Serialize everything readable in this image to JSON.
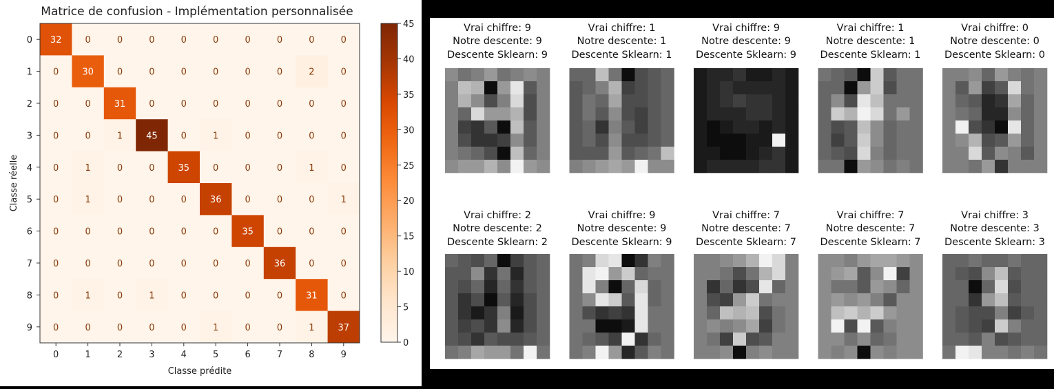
{
  "chart_data": [
    {
      "type": "heatmap",
      "title": "Matrice de confusion - Implémentation personnalisée",
      "xlabel": "Classe prédite",
      "ylabel": "Classe réelle",
      "x_categories": [
        "0",
        "1",
        "2",
        "3",
        "4",
        "5",
        "6",
        "7",
        "8",
        "9"
      ],
      "y_categories": [
        "0",
        "1",
        "2",
        "3",
        "4",
        "5",
        "6",
        "7",
        "8",
        "9"
      ],
      "matrix": [
        [
          32,
          0,
          0,
          0,
          0,
          0,
          0,
          0,
          0,
          0
        ],
        [
          0,
          30,
          0,
          0,
          0,
          0,
          0,
          0,
          2,
          0
        ],
        [
          0,
          0,
          31,
          0,
          0,
          0,
          0,
          0,
          0,
          0
        ],
        [
          0,
          0,
          1,
          45,
          0,
          1,
          0,
          0,
          0,
          0
        ],
        [
          0,
          1,
          0,
          0,
          35,
          0,
          0,
          0,
          1,
          0
        ],
        [
          0,
          1,
          0,
          0,
          0,
          36,
          0,
          0,
          0,
          1
        ],
        [
          0,
          0,
          0,
          0,
          0,
          0,
          35,
          0,
          0,
          0
        ],
        [
          0,
          0,
          0,
          0,
          0,
          0,
          0,
          36,
          0,
          0
        ],
        [
          0,
          1,
          0,
          1,
          0,
          0,
          0,
          0,
          31,
          0
        ],
        [
          0,
          0,
          0,
          0,
          0,
          1,
          0,
          0,
          1,
          37
        ]
      ],
      "colorbar": {
        "range": [
          0,
          45
        ],
        "ticks": [
          0,
          5,
          10,
          15,
          20,
          25,
          30,
          35,
          40,
          45
        ],
        "colormap": "Oranges"
      }
    },
    {
      "type": "heatmap",
      "subtype": "image-grid",
      "samples": [
        {
          "line1": "Vrai chiffre: 9",
          "line2": "Notre descente: 9",
          "line3": "Descente Sklearn: 9",
          "pixels": [
            [
              0.55,
              0.45,
              0.5,
              0.6,
              0.45,
              0.5,
              0.55,
              0.5
            ],
            [
              0.5,
              0.75,
              0.7,
              0.05,
              0.6,
              0.9,
              0.35,
              0.5
            ],
            [
              0.5,
              0.7,
              0.55,
              0.3,
              0.5,
              0.85,
              0.3,
              0.5
            ],
            [
              0.5,
              0.4,
              0.85,
              0.6,
              0.6,
              0.7,
              0.3,
              0.5
            ],
            [
              0.5,
              0.25,
              0.2,
              0.35,
              0.05,
              0.75,
              0.35,
              0.5
            ],
            [
              0.5,
              0.3,
              0.2,
              0.2,
              0.25,
              0.55,
              0.35,
              0.5
            ],
            [
              0.5,
              0.45,
              0.4,
              0.3,
              0.05,
              0.75,
              0.4,
              0.5
            ],
            [
              0.55,
              0.6,
              0.6,
              0.7,
              0.55,
              0.95,
              0.6,
              0.55
            ]
          ]
        },
        {
          "line1": "Vrai chiffre: 1",
          "line2": "Notre descente: 1",
          "line3": "Descente Sklearn: 1",
          "pixels": [
            [
              0.4,
              0.4,
              0.75,
              0.45,
              0.05,
              0.3,
              0.35,
              0.4
            ],
            [
              0.35,
              0.4,
              0.5,
              0.7,
              0.25,
              0.3,
              0.35,
              0.4
            ],
            [
              0.35,
              0.45,
              0.4,
              0.65,
              0.3,
              0.3,
              0.35,
              0.4
            ],
            [
              0.35,
              0.45,
              0.35,
              0.55,
              0.3,
              0.25,
              0.35,
              0.4
            ],
            [
              0.35,
              0.4,
              0.2,
              0.5,
              0.35,
              0.25,
              0.35,
              0.4
            ],
            [
              0.35,
              0.4,
              0.3,
              0.55,
              0.3,
              0.3,
              0.35,
              0.4
            ],
            [
              0.35,
              0.35,
              0.35,
              0.6,
              0.35,
              0.4,
              0.45,
              0.75
            ],
            [
              0.5,
              0.55,
              0.6,
              0.65,
              0.6,
              0.95,
              0.55,
              0.55
            ]
          ]
        },
        {
          "line1": "Vrai chiffre: 9",
          "line2": "Notre descente: 9",
          "line3": "Descente Sklearn: 9",
          "pixels": [
            [
              0.1,
              0.15,
              0.15,
              0.2,
              0.1,
              0.1,
              0.15,
              0.1
            ],
            [
              0.1,
              0.15,
              0.2,
              0.15,
              0.15,
              0.15,
              0.15,
              0.1
            ],
            [
              0.1,
              0.15,
              0.2,
              0.25,
              0.2,
              0.2,
              0.15,
              0.1
            ],
            [
              0.1,
              0.15,
              0.15,
              0.15,
              0.2,
              0.2,
              0.15,
              0.1
            ],
            [
              0.1,
              0.05,
              0.1,
              0.15,
              0.15,
              0.1,
              0.15,
              0.1
            ],
            [
              0.1,
              0.05,
              0.05,
              0.05,
              0.1,
              0.1,
              0.95,
              0.1
            ],
            [
              0.1,
              0.1,
              0.05,
              0.05,
              0.1,
              0.15,
              0.2,
              0.1
            ],
            [
              0.1,
              0.15,
              0.15,
              0.15,
              0.15,
              0.2,
              0.2,
              0.1
            ]
          ]
        },
        {
          "line1": "Vrai chiffre: 1",
          "line2": "Notre descente: 1",
          "line3": "Descente Sklearn: 1",
          "pixels": [
            [
              0.45,
              0.4,
              0.35,
              0.05,
              0.8,
              0.35,
              0.45,
              0.45
            ],
            [
              0.4,
              0.4,
              0.05,
              0.6,
              0.8,
              0.3,
              0.45,
              0.45
            ],
            [
              0.4,
              0.55,
              0.3,
              0.9,
              0.75,
              0.45,
              0.45,
              0.45
            ],
            [
              0.4,
              0.8,
              0.7,
              0.95,
              0.85,
              0.45,
              0.6,
              0.45
            ],
            [
              0.4,
              0.3,
              0.35,
              0.75,
              0.55,
              0.4,
              0.45,
              0.45
            ],
            [
              0.4,
              0.25,
              0.35,
              0.8,
              0.55,
              0.4,
              0.45,
              0.45
            ],
            [
              0.4,
              0.35,
              0.3,
              0.85,
              0.5,
              0.4,
              0.45,
              0.45
            ],
            [
              0.45,
              0.45,
              0.05,
              0.6,
              0.55,
              0.45,
              0.5,
              0.45
            ]
          ]
        },
        {
          "line1": "Vrai chiffre: 0",
          "line2": "Notre descente: 0",
          "line3": "Descente Sklearn: 0",
          "pixels": [
            [
              0.5,
              0.5,
              0.55,
              0.4,
              0.6,
              0.5,
              0.45,
              0.5
            ],
            [
              0.5,
              0.35,
              0.6,
              0.25,
              0.35,
              0.85,
              0.45,
              0.5
            ],
            [
              0.5,
              0.4,
              0.35,
              0.15,
              0.2,
              0.65,
              0.4,
              0.5
            ],
            [
              0.5,
              0.45,
              0.4,
              0.15,
              0.15,
              0.55,
              0.4,
              0.5
            ],
            [
              0.5,
              0.95,
              0.3,
              0.2,
              0.05,
              0.9,
              0.4,
              0.5
            ],
            [
              0.5,
              0.55,
              0.7,
              0.3,
              0.35,
              0.6,
              0.4,
              0.5
            ],
            [
              0.5,
              0.5,
              0.85,
              0.35,
              0.55,
              0.5,
              0.35,
              0.5
            ],
            [
              0.5,
              0.5,
              0.45,
              0.6,
              0.2,
              0.5,
              0.5,
              0.5
            ]
          ]
        },
        {
          "line1": "Vrai chiffre: 2",
          "line2": "Notre descente: 2",
          "line3": "Descente Sklearn: 2",
          "pixels": [
            [
              0.4,
              0.35,
              0.3,
              0.4,
              0.05,
              0.25,
              0.35,
              0.4
            ],
            [
              0.35,
              0.35,
              0.55,
              0.2,
              0.45,
              0.15,
              0.35,
              0.4
            ],
            [
              0.35,
              0.3,
              0.4,
              0.15,
              0.4,
              0.2,
              0.35,
              0.4
            ],
            [
              0.35,
              0.2,
              0.3,
              0.05,
              0.35,
              0.15,
              0.3,
              0.4
            ],
            [
              0.35,
              0.2,
              0.1,
              0.2,
              0.5,
              0.1,
              0.3,
              0.4
            ],
            [
              0.35,
              0.25,
              0.3,
              0.2,
              0.55,
              0.15,
              0.3,
              0.4
            ],
            [
              0.35,
              0.3,
              0.2,
              0.35,
              0.3,
              0.3,
              0.35,
              0.4
            ],
            [
              0.45,
              0.5,
              0.65,
              0.6,
              0.6,
              0.45,
              0.95,
              0.45
            ]
          ]
        },
        {
          "line1": "Vrai chiffre: 9",
          "line2": "Notre descente: 9",
          "line3": "Descente Sklearn: 9",
          "pixels": [
            [
              0.45,
              0.5,
              0.85,
              0.9,
              0.05,
              0.2,
              0.5,
              0.45
            ],
            [
              0.45,
              0.9,
              0.95,
              0.6,
              0.8,
              0.4,
              0.45,
              0.45
            ],
            [
              0.45,
              0.9,
              0.5,
              0.05,
              0.4,
              0.85,
              0.4,
              0.45
            ],
            [
              0.45,
              0.55,
              0.9,
              0.8,
              0.35,
              0.9,
              0.4,
              0.45
            ],
            [
              0.45,
              0.3,
              0.2,
              0.25,
              0.2,
              0.9,
              0.45,
              0.45
            ],
            [
              0.45,
              0.45,
              0.05,
              0.05,
              0.1,
              0.9,
              0.45,
              0.45
            ],
            [
              0.45,
              0.4,
              0.35,
              0.25,
              0.95,
              0.2,
              0.4,
              0.45
            ],
            [
              0.45,
              0.5,
              0.95,
              0.6,
              0.15,
              0.35,
              0.5,
              0.45
            ]
          ]
        },
        {
          "line1": "Vrai chiffre: 7",
          "line2": "Notre descente: 7",
          "line3": "Descente Sklearn: 7",
          "pixels": [
            [
              0.5,
              0.5,
              0.55,
              0.6,
              0.7,
              0.95,
              0.85,
              0.5
            ],
            [
              0.5,
              0.5,
              0.45,
              0.3,
              0.45,
              0.7,
              0.85,
              0.5
            ],
            [
              0.5,
              0.2,
              0.4,
              0.2,
              0.3,
              0.9,
              0.4,
              0.5
            ],
            [
              0.5,
              0.3,
              0.25,
              0.6,
              0.8,
              0.45,
              0.5,
              0.5
            ],
            [
              0.5,
              0.4,
              0.75,
              0.7,
              0.75,
              0.3,
              0.45,
              0.5
            ],
            [
              0.5,
              0.55,
              0.5,
              0.55,
              0.65,
              0.25,
              0.45,
              0.5
            ],
            [
              0.5,
              0.45,
              0.25,
              0.8,
              0.3,
              0.35,
              0.5,
              0.5
            ],
            [
              0.5,
              0.5,
              0.55,
              0.05,
              0.5,
              0.55,
              0.5,
              0.5
            ]
          ]
        },
        {
          "line1": "Vrai chiffre: 7",
          "line2": "Notre descente: 7",
          "line3": "Descente Sklearn: 7",
          "pixels": [
            [
              0.55,
              0.55,
              0.5,
              0.6,
              0.65,
              0.65,
              0.6,
              0.55
            ],
            [
              0.55,
              0.6,
              0.65,
              0.35,
              0.55,
              0.95,
              0.25,
              0.55
            ],
            [
              0.55,
              0.45,
              0.45,
              0.35,
              0.6,
              0.55,
              0.4,
              0.55
            ],
            [
              0.55,
              0.6,
              0.55,
              0.6,
              0.5,
              0.35,
              0.55,
              0.55
            ],
            [
              0.55,
              0.75,
              0.8,
              0.7,
              0.8,
              0.6,
              0.55,
              0.55
            ],
            [
              0.55,
              0.95,
              0.3,
              0.95,
              0.35,
              0.5,
              0.55,
              0.55
            ],
            [
              0.55,
              0.55,
              0.45,
              0.55,
              0.4,
              0.45,
              0.55,
              0.55
            ],
            [
              0.55,
              0.5,
              0.55,
              0.05,
              0.55,
              0.5,
              0.55,
              0.55
            ]
          ]
        },
        {
          "line1": "Vrai chiffre: 3",
          "line2": "Notre descente: 3",
          "line3": "Descente Sklearn: 3",
          "pixels": [
            [
              0.4,
              0.4,
              0.45,
              0.4,
              0.4,
              0.45,
              0.4,
              0.4
            ],
            [
              0.4,
              0.35,
              0.3,
              0.55,
              0.75,
              0.35,
              0.4,
              0.4
            ],
            [
              0.4,
              0.4,
              0.05,
              0.4,
              0.85,
              0.3,
              0.4,
              0.4
            ],
            [
              0.4,
              0.4,
              0.2,
              0.6,
              0.75,
              0.35,
              0.4,
              0.4
            ],
            [
              0.4,
              0.35,
              0.3,
              0.3,
              0.5,
              0.25,
              0.35,
              0.4
            ],
            [
              0.4,
              0.35,
              0.3,
              0.25,
              0.8,
              0.5,
              0.4,
              0.4
            ],
            [
              0.4,
              0.4,
              0.35,
              0.5,
              0.3,
              0.35,
              0.4,
              0.4
            ],
            [
              0.45,
              0.95,
              0.9,
              0.5,
              0.5,
              0.45,
              0.5,
              0.45
            ]
          ]
        }
      ]
    }
  ]
}
